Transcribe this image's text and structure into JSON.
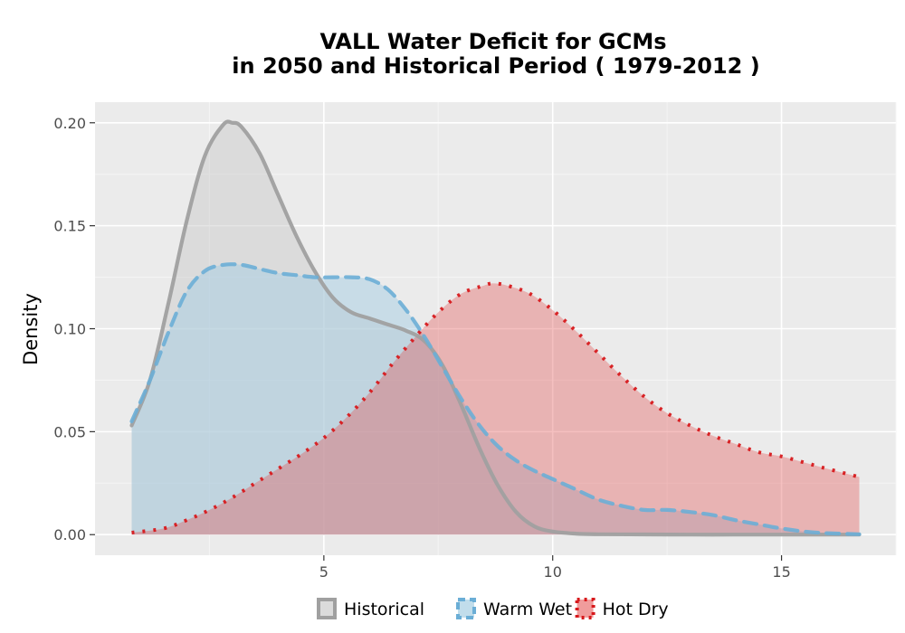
{
  "chart_data": {
    "type": "area",
    "title_lines": [
      "VALL  Water Deficit for GCMs",
      "in 2050 and Historical Period ( 1979-2012 )"
    ],
    "xlabel": "",
    "ylabel": "Density",
    "xlim": [
      0,
      17.5
    ],
    "ylim": [
      -0.01,
      0.21
    ],
    "x_ticks": [
      5,
      10,
      15
    ],
    "x_tick_labels": [
      "5",
      "10",
      "15"
    ],
    "y_ticks": [
      0,
      0.05,
      0.1,
      0.15,
      0.2
    ],
    "y_tick_labels": [
      "0.00",
      "0.05",
      "0.10",
      "0.15",
      "0.20"
    ],
    "grid": true,
    "legend_position": "bottom",
    "series": [
      {
        "name": "Historical",
        "line_color": "#a0a0a0",
        "fill_color": "#cccccc",
        "fill_opacity": 0.5,
        "dash": "solid",
        "x": [
          0.8,
          1.2,
          1.6,
          2.0,
          2.4,
          2.8,
          3.0,
          3.2,
          3.6,
          4.0,
          4.4,
          4.8,
          5.2,
          5.6,
          6.0,
          6.4,
          6.8,
          7.2,
          7.6,
          8.0,
          8.4,
          8.8,
          9.2,
          9.6,
          10.0,
          10.5,
          11.0,
          12.0,
          13.0,
          14.0,
          15.0,
          16.0,
          16.7
        ],
        "y": [
          0.053,
          0.075,
          0.112,
          0.152,
          0.184,
          0.199,
          0.2,
          0.198,
          0.185,
          0.165,
          0.145,
          0.128,
          0.115,
          0.108,
          0.105,
          0.102,
          0.099,
          0.094,
          0.082,
          0.063,
          0.042,
          0.024,
          0.011,
          0.004,
          0.0015,
          0.0005,
          0.0002,
          0.0001,
          0.0,
          0.0,
          0.0,
          0.0,
          0.0
        ]
      },
      {
        "name": "Warm Wet",
        "line_color": "#6baed6",
        "fill_color": "#a6cee3",
        "fill_opacity": 0.5,
        "dash": "dashed",
        "x": [
          0.8,
          1.2,
          1.6,
          2.0,
          2.4,
          2.8,
          3.2,
          3.6,
          4.0,
          4.4,
          4.8,
          5.2,
          5.6,
          6.0,
          6.4,
          6.8,
          7.2,
          7.6,
          8.0,
          8.4,
          8.8,
          9.2,
          9.6,
          10.0,
          10.5,
          11.0,
          11.5,
          12.0,
          12.5,
          13.0,
          13.5,
          14.0,
          14.5,
          15.0,
          15.5,
          16.0,
          16.7
        ],
        "y": [
          0.055,
          0.075,
          0.098,
          0.118,
          0.128,
          0.131,
          0.131,
          0.129,
          0.127,
          0.126,
          0.125,
          0.125,
          0.125,
          0.124,
          0.119,
          0.109,
          0.096,
          0.081,
          0.066,
          0.053,
          0.043,
          0.036,
          0.031,
          0.027,
          0.022,
          0.017,
          0.014,
          0.012,
          0.012,
          0.011,
          0.0095,
          0.007,
          0.005,
          0.003,
          0.0015,
          0.0007,
          0.0002
        ]
      },
      {
        "name": "Hot Dry",
        "line_color": "#d7191c",
        "fill_color": "#e34a4a",
        "fill_opacity": 0.35,
        "dash": "dotted",
        "x": [
          0.8,
          1.5,
          2.0,
          2.5,
          3.0,
          3.5,
          4.0,
          4.5,
          5.0,
          5.5,
          6.0,
          6.5,
          7.0,
          7.5,
          8.0,
          8.5,
          8.7,
          9.0,
          9.5,
          10.0,
          10.5,
          11.0,
          11.5,
          12.0,
          12.5,
          13.0,
          13.5,
          14.0,
          14.5,
          15.0,
          15.5,
          16.0,
          16.7
        ],
        "y": [
          0.001,
          0.003,
          0.007,
          0.012,
          0.018,
          0.025,
          0.032,
          0.039,
          0.047,
          0.057,
          0.069,
          0.083,
          0.096,
          0.108,
          0.117,
          0.121,
          0.122,
          0.121,
          0.117,
          0.109,
          0.099,
          0.088,
          0.077,
          0.067,
          0.059,
          0.053,
          0.048,
          0.044,
          0.04,
          0.038,
          0.035,
          0.032,
          0.028
        ]
      }
    ]
  }
}
